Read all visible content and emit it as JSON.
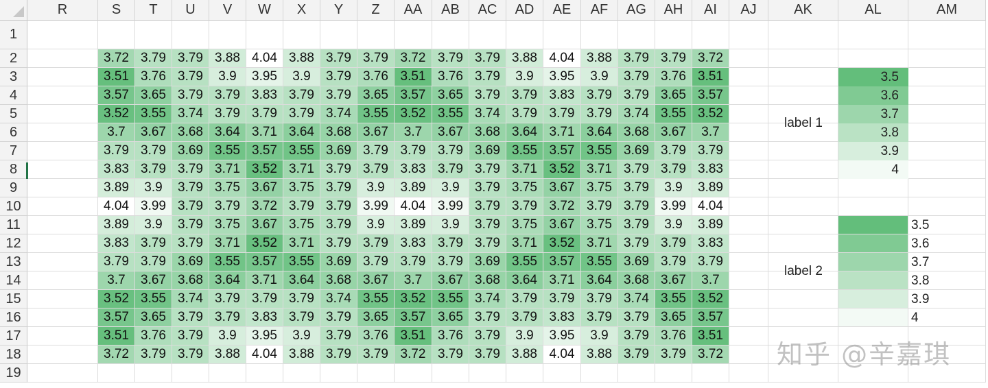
{
  "columns": [
    "R",
    "S",
    "T",
    "U",
    "V",
    "W",
    "X",
    "Y",
    "Z",
    "AA",
    "AB",
    "AC",
    "AD",
    "AE",
    "AF",
    "AG",
    "AH",
    "AI",
    "AJ",
    "AK",
    "AL",
    "AM"
  ],
  "rows": [
    "1",
    "2",
    "3",
    "4",
    "5",
    "6",
    "7",
    "8",
    "9",
    "10",
    "11",
    "12",
    "13",
    "14",
    "15",
    "16",
    "17",
    "18",
    "19"
  ],
  "data_rows": [
    [
      "3.72",
      "3.79",
      "3.79",
      "3.88",
      "4.04",
      "3.88",
      "3.79",
      "3.79",
      "3.72",
      "3.79",
      "3.79",
      "3.88",
      "4.04",
      "3.88",
      "3.79",
      "3.79",
      "3.72"
    ],
    [
      "3.51",
      "3.76",
      "3.79",
      "3.9",
      "3.95",
      "3.9",
      "3.79",
      "3.76",
      "3.51",
      "3.76",
      "3.79",
      "3.9",
      "3.95",
      "3.9",
      "3.79",
      "3.76",
      "3.51"
    ],
    [
      "3.57",
      "3.65",
      "3.79",
      "3.79",
      "3.83",
      "3.79",
      "3.79",
      "3.65",
      "3.57",
      "3.65",
      "3.79",
      "3.79",
      "3.83",
      "3.79",
      "3.79",
      "3.65",
      "3.57"
    ],
    [
      "3.52",
      "3.55",
      "3.74",
      "3.79",
      "3.79",
      "3.79",
      "3.74",
      "3.55",
      "3.52",
      "3.55",
      "3.74",
      "3.79",
      "3.79",
      "3.79",
      "3.74",
      "3.55",
      "3.52"
    ],
    [
      "3.7",
      "3.67",
      "3.68",
      "3.64",
      "3.71",
      "3.64",
      "3.68",
      "3.67",
      "3.7",
      "3.67",
      "3.68",
      "3.64",
      "3.71",
      "3.64",
      "3.68",
      "3.67",
      "3.7"
    ],
    [
      "3.79",
      "3.79",
      "3.69",
      "3.55",
      "3.57",
      "3.55",
      "3.69",
      "3.79",
      "3.79",
      "3.79",
      "3.69",
      "3.55",
      "3.57",
      "3.55",
      "3.69",
      "3.79",
      "3.79"
    ],
    [
      "3.83",
      "3.79",
      "3.79",
      "3.71",
      "3.52",
      "3.71",
      "3.79",
      "3.79",
      "3.83",
      "3.79",
      "3.79",
      "3.71",
      "3.52",
      "3.71",
      "3.79",
      "3.79",
      "3.83"
    ],
    [
      "3.89",
      "3.9",
      "3.79",
      "3.75",
      "3.67",
      "3.75",
      "3.79",
      "3.9",
      "3.89",
      "3.9",
      "3.79",
      "3.75",
      "3.67",
      "3.75",
      "3.79",
      "3.9",
      "3.89"
    ],
    [
      "4.04",
      "3.99",
      "3.79",
      "3.79",
      "3.72",
      "3.79",
      "3.79",
      "3.99",
      "4.04",
      "3.99",
      "3.79",
      "3.79",
      "3.72",
      "3.79",
      "3.79",
      "3.99",
      "4.04"
    ],
    [
      "3.89",
      "3.9",
      "3.79",
      "3.75",
      "3.67",
      "3.75",
      "3.79",
      "3.9",
      "3.89",
      "3.9",
      "3.79",
      "3.75",
      "3.67",
      "3.75",
      "3.79",
      "3.9",
      "3.89"
    ],
    [
      "3.83",
      "3.79",
      "3.79",
      "3.71",
      "3.52",
      "3.71",
      "3.79",
      "3.79",
      "3.83",
      "3.79",
      "3.79",
      "3.71",
      "3.52",
      "3.71",
      "3.79",
      "3.79",
      "3.83"
    ],
    [
      "3.79",
      "3.79",
      "3.69",
      "3.55",
      "3.57",
      "3.55",
      "3.69",
      "3.79",
      "3.79",
      "3.79",
      "3.69",
      "3.55",
      "3.57",
      "3.55",
      "3.69",
      "3.79",
      "3.79"
    ],
    [
      "3.7",
      "3.67",
      "3.68",
      "3.64",
      "3.71",
      "3.64",
      "3.68",
      "3.67",
      "3.7",
      "3.67",
      "3.68",
      "3.64",
      "3.71",
      "3.64",
      "3.68",
      "3.67",
      "3.7"
    ],
    [
      "3.52",
      "3.55",
      "3.74",
      "3.79",
      "3.79",
      "3.79",
      "3.74",
      "3.55",
      "3.52",
      "3.55",
      "3.74",
      "3.79",
      "3.79",
      "3.79",
      "3.74",
      "3.55",
      "3.52"
    ],
    [
      "3.57",
      "3.65",
      "3.79",
      "3.79",
      "3.83",
      "3.79",
      "3.79",
      "3.65",
      "3.57",
      "3.65",
      "3.79",
      "3.79",
      "3.83",
      "3.79",
      "3.79",
      "3.65",
      "3.57"
    ],
    [
      "3.51",
      "3.76",
      "3.79",
      "3.9",
      "3.95",
      "3.9",
      "3.79",
      "3.76",
      "3.51",
      "3.76",
      "3.79",
      "3.9",
      "3.95",
      "3.9",
      "3.79",
      "3.76",
      "3.51"
    ],
    [
      "3.72",
      "3.79",
      "3.79",
      "3.88",
      "4.04",
      "3.88",
      "3.79",
      "3.79",
      "3.72",
      "3.79",
      "3.79",
      "3.88",
      "4.04",
      "3.88",
      "3.79",
      "3.79",
      "3.72"
    ]
  ],
  "legend1": {
    "label": "label 1",
    "values": [
      "3.5",
      "3.6",
      "3.7",
      "3.8",
      "3.9",
      "4"
    ]
  },
  "legend2": {
    "label": "label 2",
    "values": [
      "3.5",
      "3.6",
      "3.7",
      "3.8",
      "3.9",
      "4"
    ]
  },
  "watermark": "知乎 @辛嘉琪",
  "colors": {
    "scale_low": "#63be7b",
    "scale_high": "#ffffff",
    "grid": "#dcdcdc",
    "header_bg": "#f3f3f3",
    "selection": "#217346"
  },
  "scale": {
    "min": 3.5,
    "max": 4.04
  }
}
